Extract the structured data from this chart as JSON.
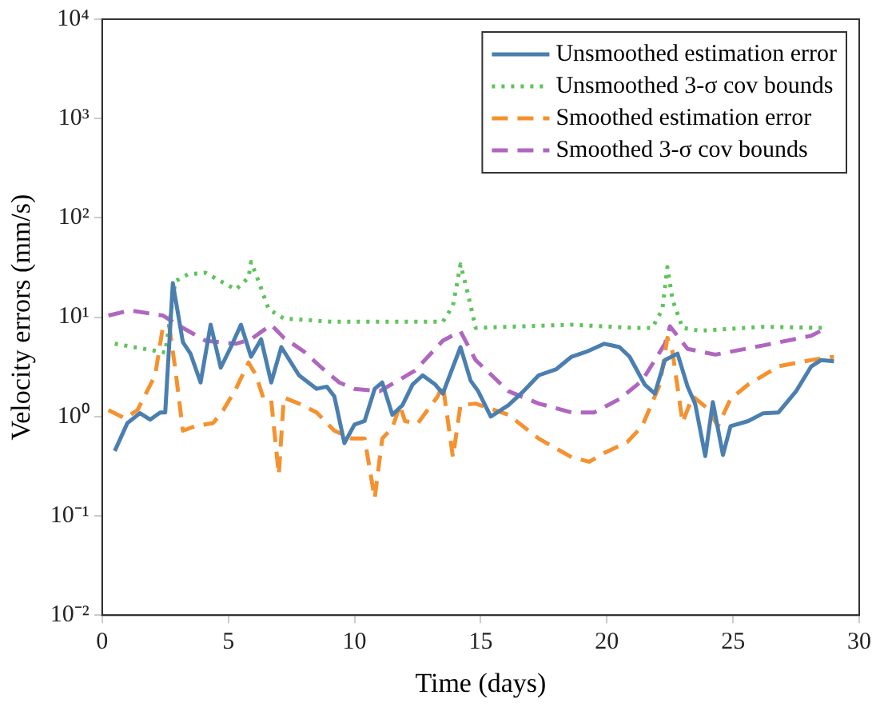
{
  "chart_data": {
    "type": "line",
    "xlabel": "Time (days)",
    "ylabel": "Velocity errors (mm/s)",
    "log": "y",
    "xlim": [
      0,
      30
    ],
    "xticks": [
      0,
      5,
      10,
      15,
      20,
      25,
      30
    ],
    "ylim": [
      0.01,
      10000
    ],
    "yticks": [
      {
        "value": 0.01,
        "label": "10⁻²"
      },
      {
        "value": 0.1,
        "label": "10⁻¹"
      },
      {
        "value": 1,
        "label": "10⁰"
      },
      {
        "value": 10,
        "label": "10¹"
      },
      {
        "value": 100,
        "label": "10²"
      },
      {
        "value": 1000,
        "label": "10³"
      },
      {
        "value": 10000,
        "label": "10⁴"
      }
    ],
    "grid": false,
    "legend": "top right",
    "marker": "none",
    "series": [
      {
        "name": "Unsmoothed estimation error",
        "color": "#4a7fb0",
        "line_style": "solid",
        "x": [
          0.5,
          1,
          1.5,
          1.9,
          2.3,
          2.5,
          2.8,
          3.2,
          3.5,
          3.9,
          4.3,
          4.7,
          5.1,
          5.5,
          5.9,
          6.3,
          6.7,
          7.1,
          7.8,
          8.5,
          8.9,
          9.2,
          9.6,
          10,
          10.4,
          10.8,
          11.1,
          11.5,
          11.9,
          12.3,
          12.7,
          13.2,
          13.5,
          14.2,
          14.6,
          14.9,
          15.4,
          16.1,
          16.7,
          17.3,
          18,
          18.6,
          19.2,
          19.9,
          20.5,
          20.9,
          21.5,
          21.9,
          22.3,
          22.8,
          23.2,
          23.5,
          23.9,
          24.2,
          24.6,
          24.9,
          25.6,
          26.2,
          26.8,
          27.5,
          28.1,
          28.5,
          29
        ],
        "values": [
          0.45,
          0.86,
          1.08,
          0.93,
          1.1,
          1.1,
          22,
          5.6,
          4.3,
          2.2,
          8.4,
          3.1,
          5,
          8.4,
          4,
          6,
          2.2,
          5,
          2.6,
          1.9,
          2,
          1.6,
          0.54,
          0.83,
          0.9,
          1.9,
          2.2,
          1.04,
          1.3,
          2.1,
          2.6,
          2.1,
          1.7,
          5,
          2.3,
          1.8,
          1,
          1.3,
          1.8,
          2.6,
          3,
          4,
          4.5,
          5.4,
          5,
          4,
          2.1,
          1.7,
          3.7,
          4.3,
          2,
          1.34,
          0.4,
          1.4,
          0.41,
          0.8,
          0.9,
          1.08,
          1.1,
          1.8,
          3.2,
          3.7,
          3.6
        ]
      },
      {
        "name": "Unsmoothed 3-σ cov bounds",
        "color": "#5ec45a",
        "line_style": "dotted",
        "x": [
          0.5,
          2.3,
          2.5,
          2.9,
          3.4,
          4.1,
          4.7,
          5.3,
          5.8,
          5.9,
          6.2,
          6.6,
          7.2,
          9.1,
          11.6,
          13.5,
          13.9,
          14.2,
          14.5,
          14.8,
          16.1,
          18.6,
          21.1,
          21.8,
          22.2,
          22.4,
          22.6,
          23,
          23.7,
          26.2,
          28.7
        ],
        "values": [
          5.4,
          4.5,
          4.4,
          23,
          27,
          28,
          23,
          19,
          25,
          36,
          23,
          12,
          9.7,
          9,
          9,
          9,
          13,
          34,
          17,
          7.8,
          8,
          8.4,
          7.8,
          7.8,
          12,
          32,
          15,
          7.8,
          7.3,
          8,
          7.8
        ]
      },
      {
        "name": "Smoothed estimation error",
        "color": "#f5922f",
        "line_style": "dashed",
        "x": [
          0.25,
          0.9,
          1.4,
          2.1,
          2.4,
          2.65,
          2.9,
          3.2,
          3.7,
          4.4,
          4.8,
          5.3,
          5.8,
          6.1,
          6.4,
          6.7,
          7,
          7.2,
          7.8,
          8.5,
          9.2,
          9.9,
          10.4,
          10.8,
          11.1,
          11.5,
          11.8,
          12,
          12.5,
          13.3,
          13.5,
          13.9,
          14.2,
          14.8,
          16.1,
          17.3,
          18.6,
          19.3,
          19.9,
          20.8,
          21.4,
          22.1,
          22.4,
          22.6,
          23,
          23.4,
          24,
          24.4,
          24.9,
          25.6,
          26.8,
          28.1,
          29
        ],
        "values": [
          1.16,
          0.96,
          1.16,
          2.6,
          7.8,
          8.4,
          3,
          0.72,
          0.8,
          0.86,
          1.16,
          1.9,
          3.5,
          2.6,
          1.5,
          1.45,
          0.26,
          1.55,
          1.35,
          1.1,
          0.72,
          0.6,
          0.6,
          0.15,
          0.6,
          0.77,
          1.3,
          0.9,
          0.85,
          1.6,
          2.1,
          0.39,
          1.3,
          1.35,
          1.04,
          0.6,
          0.39,
          0.35,
          0.43,
          0.55,
          0.8,
          2.1,
          6.2,
          4.5,
          0.87,
          1.6,
          1.2,
          0.8,
          1.5,
          2.1,
          3.2,
          3.7,
          4
        ]
      },
      {
        "name": "Smoothed 3-σ cov bounds",
        "color": "#b066c0",
        "line_style": "dashed",
        "x": [
          0.25,
          1.1,
          2.4,
          3.2,
          4.1,
          5.3,
          5.9,
          6.7,
          7.2,
          8,
          8.7,
          9.4,
          10,
          11,
          12.4,
          13.5,
          14.2,
          14.8,
          16.1,
          17.3,
          18.6,
          19.5,
          20.5,
          21.4,
          22.3,
          22.5,
          23.2,
          24.3,
          26.2,
          28.1,
          28.7
        ],
        "values": [
          10.4,
          11.7,
          10.4,
          7.8,
          5.8,
          5.4,
          6,
          8.4,
          6.2,
          4.5,
          3.1,
          2.2,
          1.9,
          1.8,
          2.9,
          5.8,
          7.2,
          3.7,
          1.8,
          1.35,
          1.1,
          1.1,
          1.5,
          2.3,
          5.4,
          8.1,
          4.8,
          4.2,
          5.2,
          6.5,
          7.8
        ]
      }
    ]
  }
}
